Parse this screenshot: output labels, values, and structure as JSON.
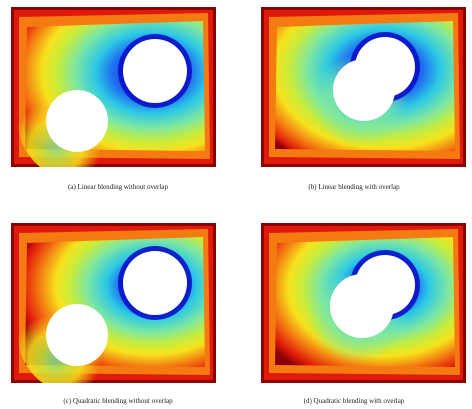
{
  "panels": [
    {
      "caption": "(a) Linear blending without overlap"
    },
    {
      "caption": "(b) Linear blending with overlap"
    },
    {
      "caption": "(c) Quadratic blending without overlap"
    },
    {
      "caption": "(d) Quadratic blending with overlap"
    }
  ],
  "colors": {
    "outer": "#8a0000",
    "red": "#e01a0a",
    "orange": "#f47a12",
    "yellow": "#f6e21c",
    "yellowgreen": "#c8ec3c",
    "green": "#7ee7a0",
    "cyan": "#2cc8e6",
    "blue": "#1e6cf0",
    "deepblue": "#0a10c8",
    "hole": "#ffffff"
  }
}
